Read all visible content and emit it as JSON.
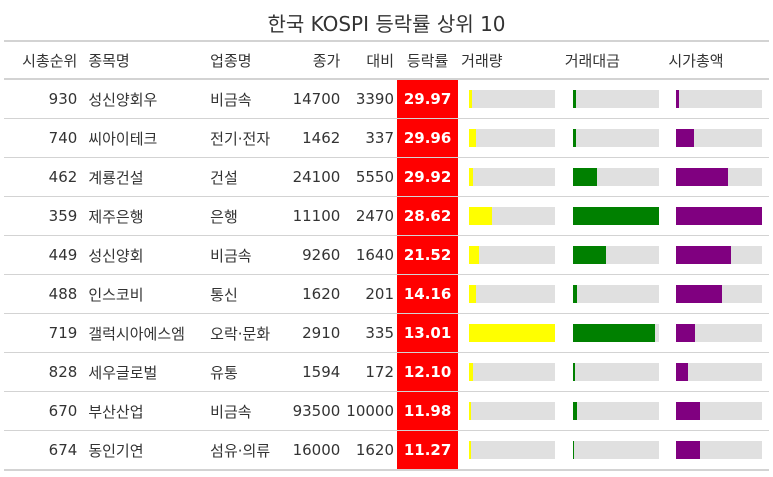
{
  "title": "한국 KOSPI 등락률 상위 10",
  "headers": {
    "rank": "시총순위",
    "name": "종목명",
    "sector": "업종명",
    "price": "종가",
    "diff": "대비",
    "rate": "등락률",
    "volume": "거래량",
    "amount": "거래대금",
    "cap": "시가총액"
  },
  "colors": {
    "rate_bg": "#ff0000",
    "volume_bar": "#ffff00",
    "amount_bar": "#008000",
    "cap_bar": "#800080",
    "bar_bg": "#e0e0e0"
  },
  "chart_data": {
    "type": "table",
    "title": "한국 KOSPI 등락률 상위 10",
    "columns": [
      "시총순위",
      "종목명",
      "업종명",
      "종가",
      "대비",
      "등락률",
      "거래량",
      "거래대금",
      "시가총액"
    ],
    "rows": [
      {
        "rank": "930",
        "name": "성신양회우",
        "sector": "비금속",
        "price": "14700",
        "diff": "3390",
        "rate": "29.97",
        "volume": 0.03,
        "amount": 0.04,
        "cap": 0.03
      },
      {
        "rank": "740",
        "name": "씨아이테크",
        "sector": "전기·전자",
        "price": "1462",
        "diff": "337",
        "rate": "29.96",
        "volume": 0.08,
        "amount": 0.04,
        "cap": 0.2
      },
      {
        "rank": "462",
        "name": "계룡건설",
        "sector": "건설",
        "price": "24100",
        "diff": "5550",
        "rate": "29.92",
        "volume": 0.04,
        "amount": 0.28,
        "cap": 0.6
      },
      {
        "rank": "359",
        "name": "제주은행",
        "sector": "은행",
        "price": "11100",
        "diff": "2470",
        "rate": "28.62",
        "volume": 0.27,
        "amount": 1.0,
        "cap": 1.0
      },
      {
        "rank": "449",
        "name": "성신양회",
        "sector": "비금속",
        "price": "9260",
        "diff": "1640",
        "rate": "21.52",
        "volume": 0.12,
        "amount": 0.39,
        "cap": 0.64
      },
      {
        "rank": "488",
        "name": "인스코비",
        "sector": "통신",
        "price": "1620",
        "diff": "201",
        "rate": "14.16",
        "volume": 0.08,
        "amount": 0.05,
        "cap": 0.53
      },
      {
        "rank": "719",
        "name": "갤럭시아에스엠",
        "sector": "오락·문화",
        "price": "2910",
        "diff": "335",
        "rate": "13.01",
        "volume": 1.0,
        "amount": 0.96,
        "cap": 0.22
      },
      {
        "rank": "828",
        "name": "세우글로벌",
        "sector": "유통",
        "price": "1594",
        "diff": "172",
        "rate": "12.10",
        "volume": 0.05,
        "amount": 0.03,
        "cap": 0.13
      },
      {
        "rank": "670",
        "name": "부산산업",
        "sector": "비금속",
        "price": "93500",
        "diff": "10000",
        "rate": "11.98",
        "volume": 0.02,
        "amount": 0.05,
        "cap": 0.28
      },
      {
        "rank": "674",
        "name": "동인기연",
        "sector": "섬유·의류",
        "price": "16000",
        "diff": "1620",
        "rate": "11.27",
        "volume": 0.02,
        "amount": 0.02,
        "cap": 0.27
      }
    ]
  }
}
